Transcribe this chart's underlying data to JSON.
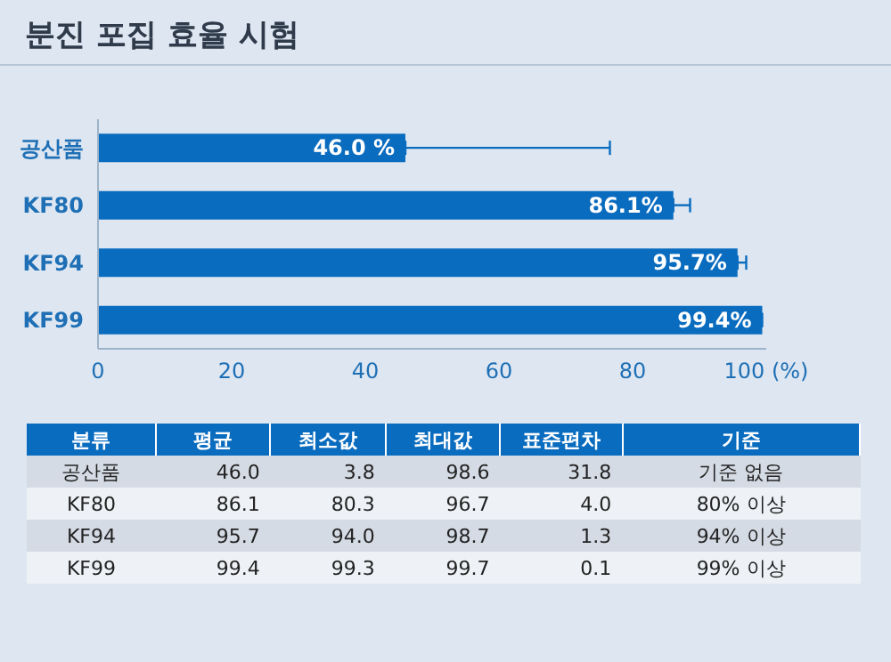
{
  "chart_data": {
    "type": "bar",
    "orientation": "horizontal",
    "title": "분진 포집 효율 시험",
    "categories": [
      "공산품",
      "KF80",
      "KF94",
      "KF99"
    ],
    "values": [
      46.0,
      86.1,
      95.7,
      99.4
    ],
    "value_labels": [
      "46.0 %",
      "86.1%",
      "95.7%",
      "99.4%"
    ],
    "errors": [
      [
        46.0,
        76.6
      ],
      [
        86.1,
        88.6
      ],
      [
        95.7,
        97.0
      ],
      [
        99.4,
        99.3
      ]
    ],
    "color": "#0a6cbf",
    "xlim": [
      0,
      100
    ],
    "xticks": [
      0,
      20,
      40,
      60,
      80,
      {
        "value": 100,
        "label": "100 (%)"
      }
    ],
    "grid": false,
    "annotations": [
      "분류",
      "평균",
      "최소값",
      "최대값",
      "표준편차",
      "기준",
      "공산품",
      "46.0",
      "3.8",
      "98.6",
      "31.8",
      "기준 없음",
      "KF80",
      "86.1",
      "80.3",
      "96.7",
      "4.0",
      "80% 이상",
      "KF94",
      "95.7",
      "94.0",
      "98.7",
      "1.3",
      "94% 이상",
      "KF99",
      "99.4",
      "99.3",
      "99.7",
      "0.1",
      "99% 이상"
    ]
  }
}
